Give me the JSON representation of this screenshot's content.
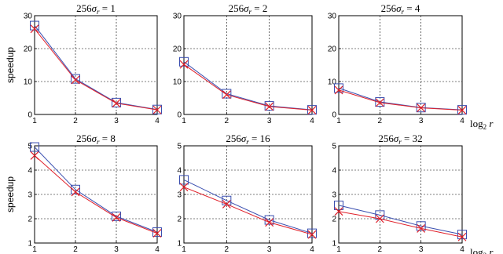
{
  "chart_data": [
    {
      "type": "line",
      "title": {
        "pre": "256",
        "sym": "σ",
        "sub": "r",
        "post": " = 1"
      },
      "x": [
        1,
        2,
        3,
        4
      ],
      "xlim": [
        1,
        4
      ],
      "ylim": [
        0,
        30
      ],
      "xticks": [
        "1",
        "2",
        "3",
        "4"
      ],
      "yticks": [
        "0",
        "10",
        "20",
        "30"
      ],
      "ylabel": "speedup",
      "xlabel": "",
      "grid": true,
      "series": [
        {
          "marker": "square",
          "color": "#3a4fb0",
          "values": [
            27,
            10.8,
            3.6,
            1.5
          ]
        },
        {
          "marker": "x",
          "color": "#e0202a",
          "values": [
            26,
            10.5,
            3.4,
            1.4
          ]
        }
      ]
    },
    {
      "type": "line",
      "title": {
        "pre": "256",
        "sym": "σ",
        "sub": "r",
        "post": " = 2"
      },
      "x": [
        1,
        2,
        3,
        4
      ],
      "xlim": [
        1,
        4
      ],
      "ylim": [
        0,
        30
      ],
      "xticks": [
        "1",
        "2",
        "3",
        "4"
      ],
      "yticks": [
        "0",
        "10",
        "20",
        "30"
      ],
      "ylabel": "",
      "xlabel": "",
      "grid": true,
      "series": [
        {
          "marker": "square",
          "color": "#3a4fb0",
          "values": [
            16,
            6.3,
            2.6,
            1.4
          ]
        },
        {
          "marker": "x",
          "color": "#e0202a",
          "values": [
            15.2,
            6.0,
            2.4,
            1.3
          ]
        }
      ]
    },
    {
      "type": "line",
      "title": {
        "pre": "256",
        "sym": "σ",
        "sub": "r",
        "post": " = 4"
      },
      "x": [
        1,
        2,
        3,
        4
      ],
      "xlim": [
        1,
        4
      ],
      "ylim": [
        0,
        30
      ],
      "xticks": [
        "1",
        "2",
        "3",
        "4"
      ],
      "yticks": [
        "0",
        "10",
        "20",
        "30"
      ],
      "ylabel": "",
      "xlabel": {
        "pre": "log",
        "sub": "2",
        "post": " r"
      },
      "grid": true,
      "series": [
        {
          "marker": "square",
          "color": "#3a4fb0",
          "values": [
            8.0,
            3.8,
            2.1,
            1.4
          ]
        },
        {
          "marker": "x",
          "color": "#e0202a",
          "values": [
            7.4,
            3.6,
            2.0,
            1.3
          ]
        }
      ]
    },
    {
      "type": "line",
      "title": {
        "pre": "256",
        "sym": "σ",
        "sub": "r",
        "post": " = 8"
      },
      "x": [
        1,
        2,
        3,
        4
      ],
      "xlim": [
        1,
        4
      ],
      "ylim": [
        1,
        5
      ],
      "xticks": [
        "1",
        "2",
        "3",
        "4"
      ],
      "yticks": [
        "1",
        "2",
        "3",
        "4",
        "5"
      ],
      "ylabel": "speedup",
      "xlabel": "",
      "grid": true,
      "series": [
        {
          "marker": "square",
          "color": "#3a4fb0",
          "values": [
            4.95,
            3.2,
            2.1,
            1.45
          ]
        },
        {
          "marker": "x",
          "color": "#e0202a",
          "values": [
            4.6,
            3.1,
            2.05,
            1.4
          ]
        }
      ]
    },
    {
      "type": "line",
      "title": {
        "pre": "256",
        "sym": "σ",
        "sub": "r",
        "post": " = 16"
      },
      "x": [
        1,
        2,
        3,
        4
      ],
      "xlim": [
        1,
        4
      ],
      "ylim": [
        1,
        5
      ],
      "xticks": [
        "1",
        "2",
        "3",
        "4"
      ],
      "yticks": [
        "1",
        "2",
        "3",
        "4",
        "5"
      ],
      "ylabel": "",
      "xlabel": "",
      "grid": true,
      "series": [
        {
          "marker": "square",
          "color": "#3a4fb0",
          "values": [
            3.6,
            2.75,
            1.95,
            1.4
          ]
        },
        {
          "marker": "x",
          "color": "#e0202a",
          "values": [
            3.3,
            2.6,
            1.85,
            1.35
          ]
        }
      ]
    },
    {
      "type": "line",
      "title": {
        "pre": "256",
        "sym": "σ",
        "sub": "r",
        "post": " = 32"
      },
      "x": [
        1,
        2,
        3,
        4
      ],
      "xlim": [
        1,
        4
      ],
      "ylim": [
        1,
        5
      ],
      "xticks": [
        "1",
        "2",
        "3",
        "4"
      ],
      "yticks": [
        "1",
        "2",
        "3",
        "4",
        "5"
      ],
      "ylabel": "",
      "xlabel": {
        "pre": "log",
        "sub": "2",
        "post": " r"
      },
      "grid": true,
      "series": [
        {
          "marker": "square",
          "color": "#3a4fb0",
          "values": [
            2.55,
            2.15,
            1.7,
            1.35
          ]
        },
        {
          "marker": "x",
          "color": "#e0202a",
          "values": [
            2.3,
            2.0,
            1.6,
            1.25
          ]
        }
      ]
    }
  ]
}
